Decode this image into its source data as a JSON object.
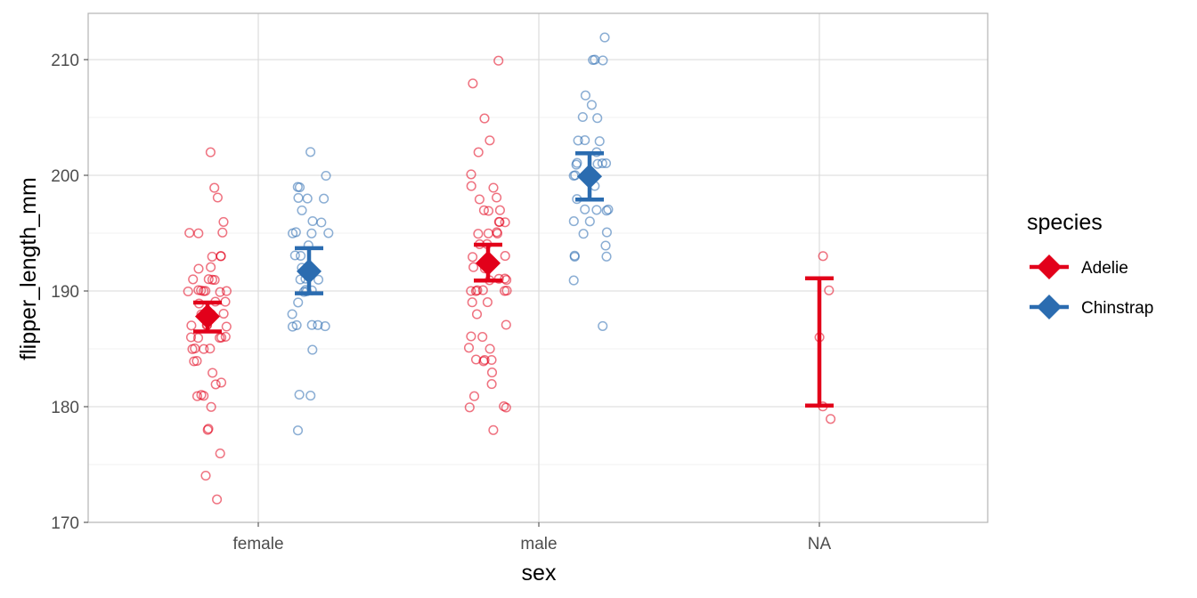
{
  "chart_data": {
    "type": "scatter",
    "title": "",
    "xlabel": "sex",
    "ylabel": "flipper_length_mm",
    "categories": [
      "female",
      "male",
      "NA"
    ],
    "ylim": [
      170,
      214
    ],
    "y_ticks": [
      170,
      180,
      190,
      200,
      210
    ],
    "grid": true,
    "legend": {
      "title": "species",
      "position": "right"
    },
    "colors": {
      "Adelie": "#E2001A",
      "Chinstrap": "#2B6CB0",
      "grid": "#D9D9D9",
      "border": "#B3B3B3"
    },
    "series": [
      {
        "name": "Adelie",
        "groups": [
          {
            "category": "female",
            "points": [
              172,
              174,
              176,
              178,
              178,
              180,
              181,
              181,
              181,
              182,
              182,
              183,
              184,
              184,
              185,
              185,
              185,
              185,
              186,
              186,
              186,
              186,
              186,
              187,
              187,
              187,
              187,
              188,
              188,
              188,
              189,
              189,
              189,
              190,
              190,
              190,
              190,
              190,
              190,
              190,
              191,
              191,
              191,
              191,
              192,
              192,
              193,
              193,
              193,
              195,
              195,
              195,
              196,
              198,
              199,
              202
            ],
            "mean": 187.8,
            "lower": 186.5,
            "upper": 189.0,
            "show_mean": true
          },
          {
            "category": "male",
            "points": [
              178,
              180,
              180,
              180,
              181,
              182,
              183,
              184,
              184,
              184,
              184,
              185,
              185,
              186,
              186,
              187,
              188,
              189,
              189,
              190,
              190,
              190,
              190,
              190,
              190,
              191,
              191,
              191,
              191,
              192,
              192,
              193,
              193,
              194,
              194,
              195,
              195,
              195,
              195,
              196,
              196,
              196,
              197,
              197,
              197,
              198,
              198,
              199,
              199,
              200,
              202,
              203,
              205,
              208,
              210
            ],
            "mean": 192.4,
            "lower": 190.9,
            "upper": 194.0,
            "show_mean": true
          },
          {
            "category": "NA",
            "points": [
              179,
              180,
              186,
              190,
              193
            ],
            "mean": 185.6,
            "lower": 180.1,
            "upper": 191.1,
            "show_mean": false
          }
        ]
      },
      {
        "name": "Chinstrap",
        "groups": [
          {
            "category": "female",
            "points": [
              178,
              181,
              181,
              185,
              187,
              187,
              187,
              187,
              187,
              188,
              189,
              190,
              190,
              190,
              190,
              191,
              191,
              191,
              192,
              193,
              193,
              194,
              195,
              195,
              195,
              195,
              196,
              196,
              197,
              198,
              198,
              198,
              199,
              199,
              200,
              202
            ],
            "mean": 191.7,
            "lower": 189.8,
            "upper": 193.7,
            "show_mean": true
          },
          {
            "category": "male",
            "points": [
              187,
              191,
              193,
              193,
              193,
              194,
              195,
              195,
              196,
              196,
              197,
              197,
              197,
              197,
              198,
              199,
              200,
              200,
              201,
              201,
              201,
              201,
              201,
              202,
              203,
              203,
              203,
              205,
              205,
              206,
              207,
              210,
              210,
              210,
              212
            ],
            "mean": 199.9,
            "lower": 197.9,
            "upper": 201.9,
            "show_mean": true
          }
        ]
      }
    ]
  }
}
